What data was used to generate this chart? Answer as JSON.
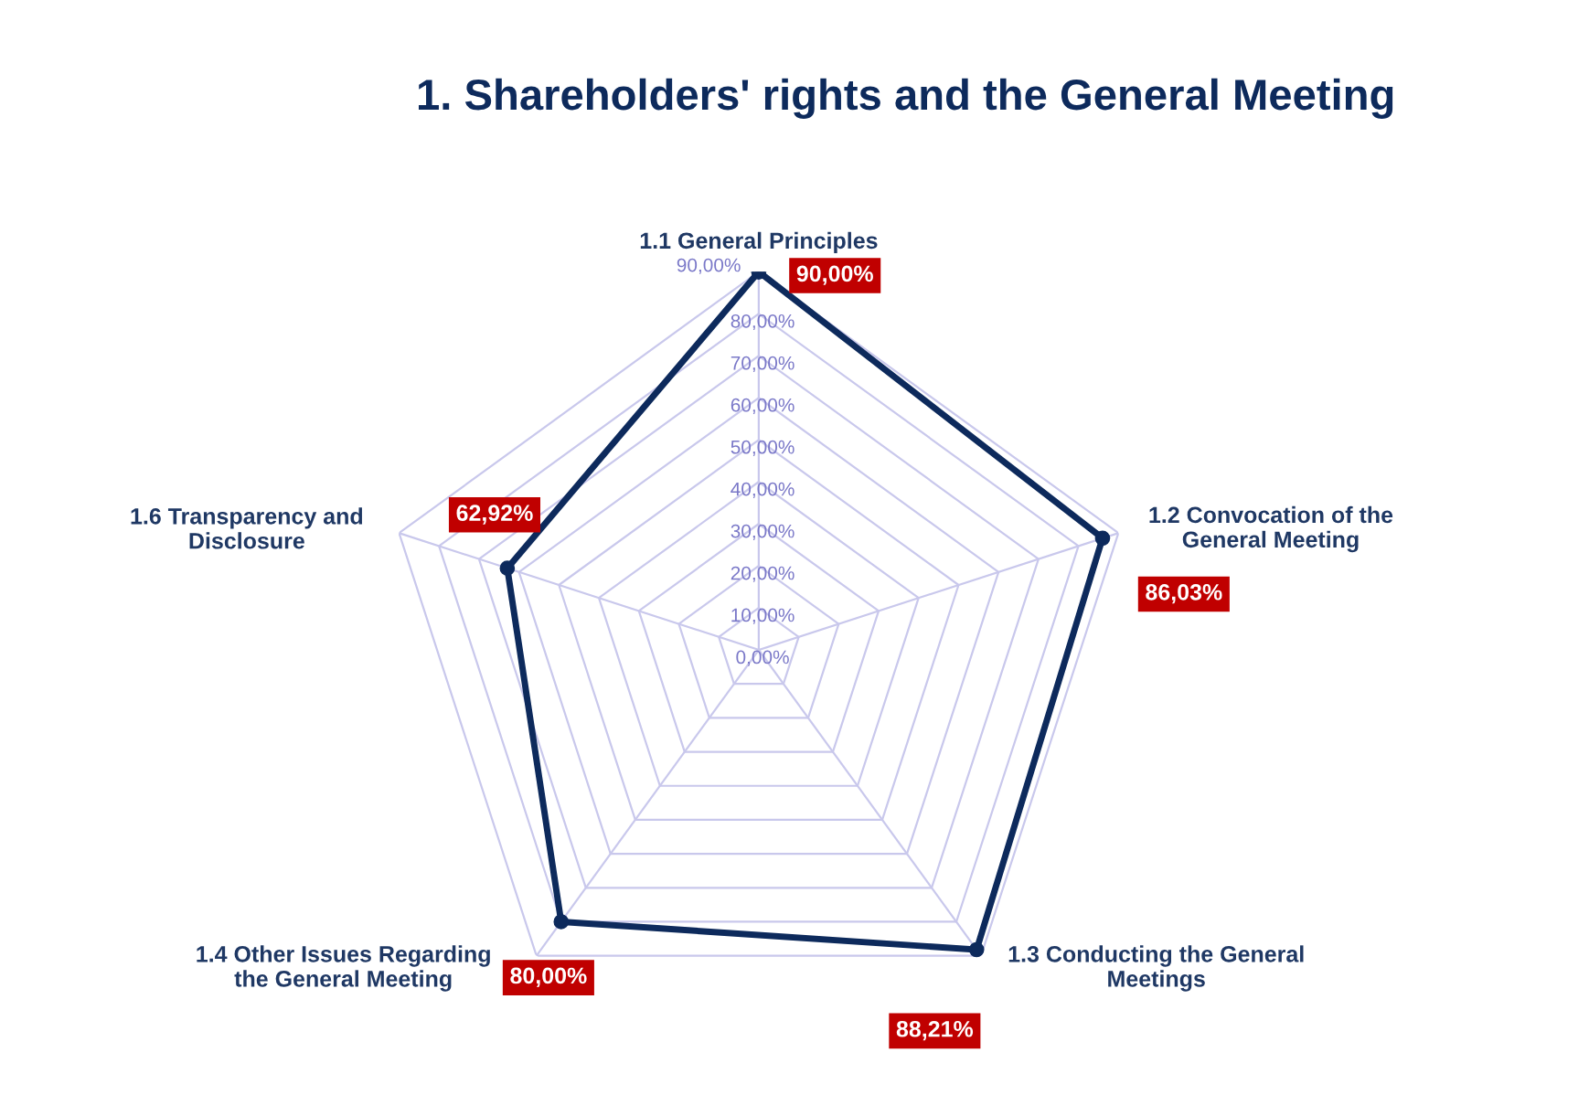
{
  "chart_data": {
    "type": "radar",
    "title": "1. Shareholders' rights and the General Meeting",
    "categories": [
      "1.1 General Principles",
      "1.2 Convocation of the\nGeneral Meeting",
      "1.3 Conducting the General\nMeetings",
      "1.4 Other Issues Regarding\nthe General Meeting",
      "1.6 Transparency and\nDisclosure"
    ],
    "series": [
      {
        "color": "#0d2a5c",
        "values": [
          90.0,
          86.03,
          88.21,
          80.0,
          62.92
        ],
        "value_labels": [
          "90,00%",
          "86,03%",
          "88,21%",
          "80,00%",
          "62,92%"
        ]
      }
    ],
    "ylim": [
      0,
      90
    ],
    "yticks": [
      {
        "value": 0,
        "label": "0,00%"
      },
      {
        "value": 10,
        "label": "10,00%"
      },
      {
        "value": 20,
        "label": "20,00%"
      },
      {
        "value": 30,
        "label": "30,00%"
      },
      {
        "value": 40,
        "label": "40,00%"
      },
      {
        "value": 50,
        "label": "50,00%"
      },
      {
        "value": 60,
        "label": "60,00%"
      },
      {
        "value": 70,
        "label": "70,00%"
      },
      {
        "value": 80,
        "label": "80,00%"
      },
      {
        "value": 90,
        "label": "90,00%"
      }
    ],
    "grid": true,
    "marker": "circle",
    "line_style": "solid"
  }
}
